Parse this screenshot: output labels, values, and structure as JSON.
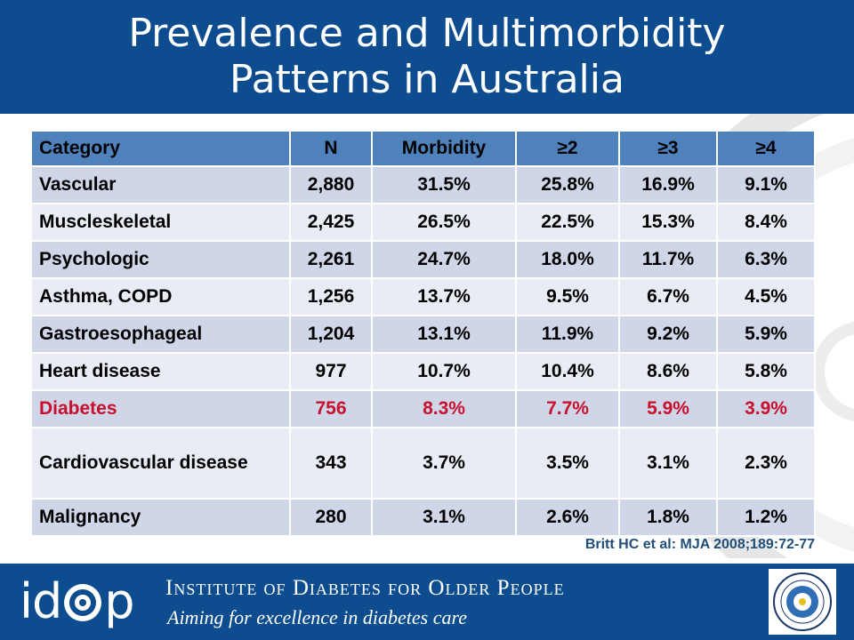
{
  "slide": {
    "title_line1": "Prevalence and Multimorbidity",
    "title_line2": "Patterns in Australia"
  },
  "table": {
    "headers": [
      "Category",
      "N",
      "Morbidity",
      "≥2",
      "≥3",
      "≥4"
    ],
    "rows": [
      {
        "category": "Vascular",
        "n": "2,880",
        "morbidity": "31.5%",
        "ge2": "25.8%",
        "ge3": "16.9%",
        "ge4": "9.1%"
      },
      {
        "category": "Muscleskeletal",
        "n": "2,425",
        "morbidity": "26.5%",
        "ge2": "22.5%",
        "ge3": "15.3%",
        "ge4": "8.4%"
      },
      {
        "category": "Psychologic",
        "n": "2,261",
        "morbidity": "24.7%",
        "ge2": "18.0%",
        "ge3": "11.7%",
        "ge4": "6.3%"
      },
      {
        "category": "Asthma, COPD",
        "n": "1,256",
        "morbidity": "13.7%",
        "ge2": "9.5%",
        "ge3": "6.7%",
        "ge4": "4.5%"
      },
      {
        "category": "Gastroesophageal",
        "n": "1,204",
        "morbidity": "13.1%",
        "ge2": "11.9%",
        "ge3": "9.2%",
        "ge4": "5.9%"
      },
      {
        "category": "Heart disease",
        "n": "977",
        "morbidity": "10.7%",
        "ge2": "10.4%",
        "ge3": "8.6%",
        "ge4": "5.8%"
      },
      {
        "category": "Diabetes",
        "n": "756",
        "morbidity": "8.3%",
        "ge2": "7.7%",
        "ge3": "5.9%",
        "ge4": "3.9%"
      },
      {
        "category": "Cardiovascular disease",
        "n": "343",
        "morbidity": "3.7%",
        "ge2": "3.5%",
        "ge3": "3.1%",
        "ge4": "2.3%"
      },
      {
        "category": "Malignancy",
        "n": "280",
        "morbidity": "3.1%",
        "ge2": "2.6%",
        "ge3": "1.8%",
        "ge4": "1.2%"
      }
    ]
  },
  "citation": "Britt HC et al: MJA 2008;189:72-77",
  "footer": {
    "logo_left": "id",
    "logo_right": "p",
    "institute_name": "Institute of Diabetes for Older People",
    "tagline": "Aiming for excellence in diabetes care"
  },
  "colors": {
    "brand_blue": "#0d4c8f",
    "header_cell": "#4f81bd",
    "row_dark": "#cfd6e8",
    "row_light": "#e9ecf4",
    "highlight_red": "#c8102e"
  }
}
